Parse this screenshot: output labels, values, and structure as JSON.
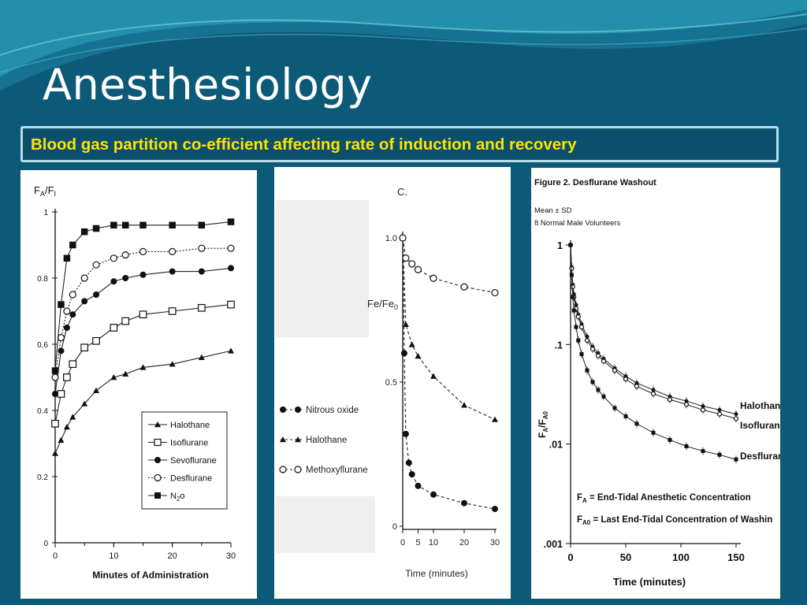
{
  "slide": {
    "title": "Anesthesiology",
    "subtitle": "Blood gas partition co-efficient affecting rate of induction and recovery"
  },
  "colors": {
    "background": "#0d5a78",
    "title": "#ffffff",
    "subtitle": "#ffe300",
    "subtitle_border": "#b8dde9"
  },
  "chart_data": [
    {
      "type": "line",
      "ylabel": "FA/FI",
      "ylabel_main": "F",
      "ylabel_sub1": "A",
      "ylabel_sub2": "I",
      "xlabel": "Minutes of Administration",
      "xlim": [
        0,
        30
      ],
      "ylim": [
        0,
        1
      ],
      "xticks": [
        0,
        10,
        20,
        30
      ],
      "yticks": [
        0,
        0.2,
        0.4,
        0.6,
        0.8,
        1
      ],
      "ytick_labels": [
        "0",
        "0.2",
        "0.4",
        "0.6",
        "0.8",
        "1"
      ],
      "legend_position": "bottom-right",
      "series": [
        {
          "name": "Halothane",
          "marker": "triangle-filled",
          "dash": "solid",
          "x": [
            0,
            1,
            2,
            3,
            5,
            7,
            10,
            12,
            15,
            20,
            25,
            30
          ],
          "y": [
            0.27,
            0.31,
            0.35,
            0.38,
            0.42,
            0.46,
            0.5,
            0.51,
            0.53,
            0.54,
            0.56,
            0.58
          ]
        },
        {
          "name": "Isoflurane",
          "marker": "square-open",
          "dash": "solid",
          "x": [
            0,
            1,
            2,
            3,
            5,
            7,
            10,
            12,
            15,
            20,
            25,
            30
          ],
          "y": [
            0.36,
            0.45,
            0.5,
            0.54,
            0.59,
            0.61,
            0.65,
            0.67,
            0.69,
            0.7,
            0.71,
            0.72
          ]
        },
        {
          "name": "Sevoflurane",
          "marker": "circle-filled",
          "dash": "solid",
          "x": [
            0,
            1,
            2,
            3,
            5,
            7,
            10,
            12,
            15,
            20,
            25,
            30
          ],
          "y": [
            0.45,
            0.58,
            0.65,
            0.69,
            0.73,
            0.75,
            0.79,
            0.8,
            0.81,
            0.82,
            0.82,
            0.83
          ]
        },
        {
          "name": "Desflurane",
          "marker": "circle-open",
          "dash": "dotted",
          "x": [
            0,
            1,
            2,
            3,
            5,
            7,
            10,
            12,
            15,
            20,
            25,
            30
          ],
          "y": [
            0.5,
            0.62,
            0.7,
            0.75,
            0.8,
            0.84,
            0.86,
            0.87,
            0.88,
            0.88,
            0.89,
            0.89
          ]
        },
        {
          "name": "N2o",
          "name_main": "N",
          "name_sub": "2",
          "name_tail": "o",
          "marker": "square-filled",
          "dash": "solid",
          "x": [
            0,
            1,
            2,
            3,
            5,
            7,
            10,
            12,
            15,
            20,
            25,
            30
          ],
          "y": [
            0.52,
            0.72,
            0.86,
            0.9,
            0.94,
            0.95,
            0.96,
            0.96,
            0.96,
            0.96,
            0.96,
            0.97
          ]
        }
      ]
    },
    {
      "type": "line",
      "panel_label": "C.",
      "ylabel": "Fe/Fe0",
      "ylabel_main": "Fe/Fe",
      "ylabel_sub": "0",
      "xlabel": "Time (minutes)",
      "xlim": [
        0,
        30
      ],
      "ylim": [
        0,
        1
      ],
      "xticks": [
        0,
        10,
        20,
        30
      ],
      "extra_xtick_labels": [
        5
      ],
      "yticks": [
        0,
        0.5,
        1.0
      ],
      "ytick_labels": [
        "0",
        "0.5",
        "1.0"
      ],
      "legend_position": "left",
      "series": [
        {
          "name": "Nitrous oxide",
          "marker": "circle-filled",
          "dash": "dashed",
          "x": [
            0,
            0.5,
            1,
            2,
            3,
            5,
            10,
            20,
            30
          ],
          "y": [
            1.0,
            0.6,
            0.32,
            0.22,
            0.18,
            0.14,
            0.11,
            0.08,
            0.06
          ]
        },
        {
          "name": "Halothane",
          "marker": "triangle-filled",
          "dash": "dashed",
          "x": [
            0,
            1,
            3,
            5,
            10,
            20,
            30
          ],
          "y": [
            1.0,
            0.7,
            0.63,
            0.59,
            0.52,
            0.42,
            0.37
          ]
        },
        {
          "name": "Methoxyflurane",
          "marker": "circle-open",
          "dash": "dashed",
          "x": [
            0,
            1,
            3,
            5,
            10,
            20,
            30
          ],
          "y": [
            1.0,
            0.93,
            0.91,
            0.89,
            0.86,
            0.83,
            0.81
          ]
        }
      ]
    },
    {
      "type": "line",
      "title": "Figure 2. Desflurane Washout",
      "subtitle_lines": [
        "Mean ± SD",
        "8 Normal Male Volunteers"
      ],
      "ylabel": "FA/FA0",
      "ylabel_main": "F",
      "ylabel_sub1": "A",
      "ylabel_sub2": "A0",
      "xlabel": "Time (minutes)",
      "xlim": [
        0,
        150
      ],
      "ylim": [
        0.001,
        1
      ],
      "yscale": "log",
      "xticks": [
        0,
        50,
        100,
        150
      ],
      "yticks": [
        0.001,
        0.01,
        0.1,
        1
      ],
      "ytick_labels": [
        ".001",
        ".01",
        ".1",
        "1"
      ],
      "legend_position": "right",
      "definitions": [
        {
          "main": "F",
          "sub": "A",
          "text": " = End-Tidal Anesthetic Concentration"
        },
        {
          "main": "F",
          "sub": "A0",
          "text": " = Last End-Tidal Concentration of Washin"
        }
      ],
      "series": [
        {
          "name": "Halothane",
          "marker": "circle-filled",
          "dash": "solid",
          "x": [
            0,
            1,
            2,
            3,
            5,
            7,
            10,
            15,
            20,
            25,
            30,
            40,
            50,
            60,
            75,
            90,
            105,
            120,
            135,
            150
          ],
          "y": [
            1.0,
            0.6,
            0.4,
            0.32,
            0.25,
            0.2,
            0.16,
            0.12,
            0.095,
            0.082,
            0.072,
            0.058,
            0.048,
            0.041,
            0.035,
            0.03,
            0.027,
            0.024,
            0.022,
            0.02
          ]
        },
        {
          "name": "Isoflurane",
          "marker": "circle-open",
          "dash": "solid",
          "x": [
            0,
            1,
            2,
            3,
            5,
            7,
            10,
            15,
            20,
            25,
            30,
            40,
            50,
            60,
            75,
            90,
            105,
            120,
            135,
            150
          ],
          "y": [
            1.0,
            0.58,
            0.38,
            0.3,
            0.23,
            0.19,
            0.15,
            0.11,
            0.09,
            0.077,
            0.068,
            0.055,
            0.045,
            0.038,
            0.032,
            0.028,
            0.025,
            0.022,
            0.02,
            0.018
          ]
        },
        {
          "name": "Desflurane",
          "marker": "square-filled",
          "dash": "solid",
          "x": [
            0,
            1,
            2,
            3,
            5,
            7,
            10,
            15,
            20,
            25,
            30,
            40,
            50,
            60,
            75,
            90,
            105,
            120,
            135,
            150
          ],
          "y": [
            1.0,
            0.5,
            0.3,
            0.22,
            0.15,
            0.11,
            0.08,
            0.055,
            0.042,
            0.035,
            0.03,
            0.023,
            0.019,
            0.016,
            0.013,
            0.011,
            0.0095,
            0.0085,
            0.0078,
            0.007
          ]
        }
      ]
    }
  ]
}
